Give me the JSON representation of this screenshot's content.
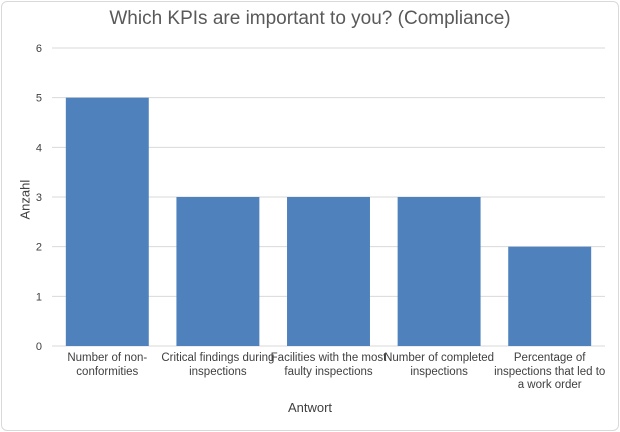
{
  "chart_data": {
    "type": "bar",
    "title": "Which KPIs are important to you? (Compliance)",
    "xlabel": "Antwort",
    "ylabel": "Anzahl",
    "categories": [
      "Number of non-conformities",
      "Critical findings during inspections",
      "Facilities with the most faulty inspections",
      "Number of completed inspections",
      "Percentage of inspections that led to a work order"
    ],
    "values": [
      5,
      3,
      3,
      3,
      2
    ],
    "ylim": [
      0,
      6
    ],
    "yticks": [
      "0",
      "1",
      "2",
      "3",
      "4",
      "5",
      "6"
    ],
    "grid": true,
    "legend": "none",
    "bar_color": "#4f81bd"
  }
}
